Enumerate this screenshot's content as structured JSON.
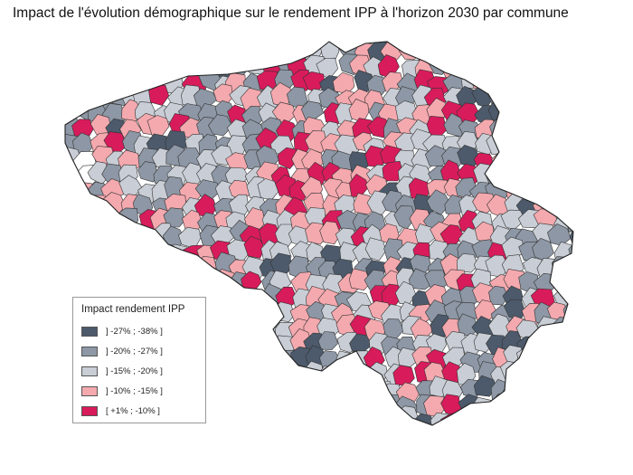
{
  "title": "Impact de l'évolution démographique sur le rendement IPP à l'horizon 2030 par commune",
  "legend": {
    "title": "Impact rendement IPP",
    "items": [
      {
        "label": "] -27% ; -38% ]",
        "color": "#4c5a6b"
      },
      {
        "label": "] -20% ; -27% ]",
        "color": "#8d97a5"
      },
      {
        "label": "] -15% ; -20% ]",
        "color": "#c9ced6"
      },
      {
        "label": "] -10% ; -15% ]",
        "color": "#f4a9ae"
      },
      {
        "label": "[ +1% ; -10% ]",
        "color": "#d81b5b"
      }
    ]
  },
  "colors": {
    "border": "#333333",
    "no_data": "#ffffff"
  }
}
